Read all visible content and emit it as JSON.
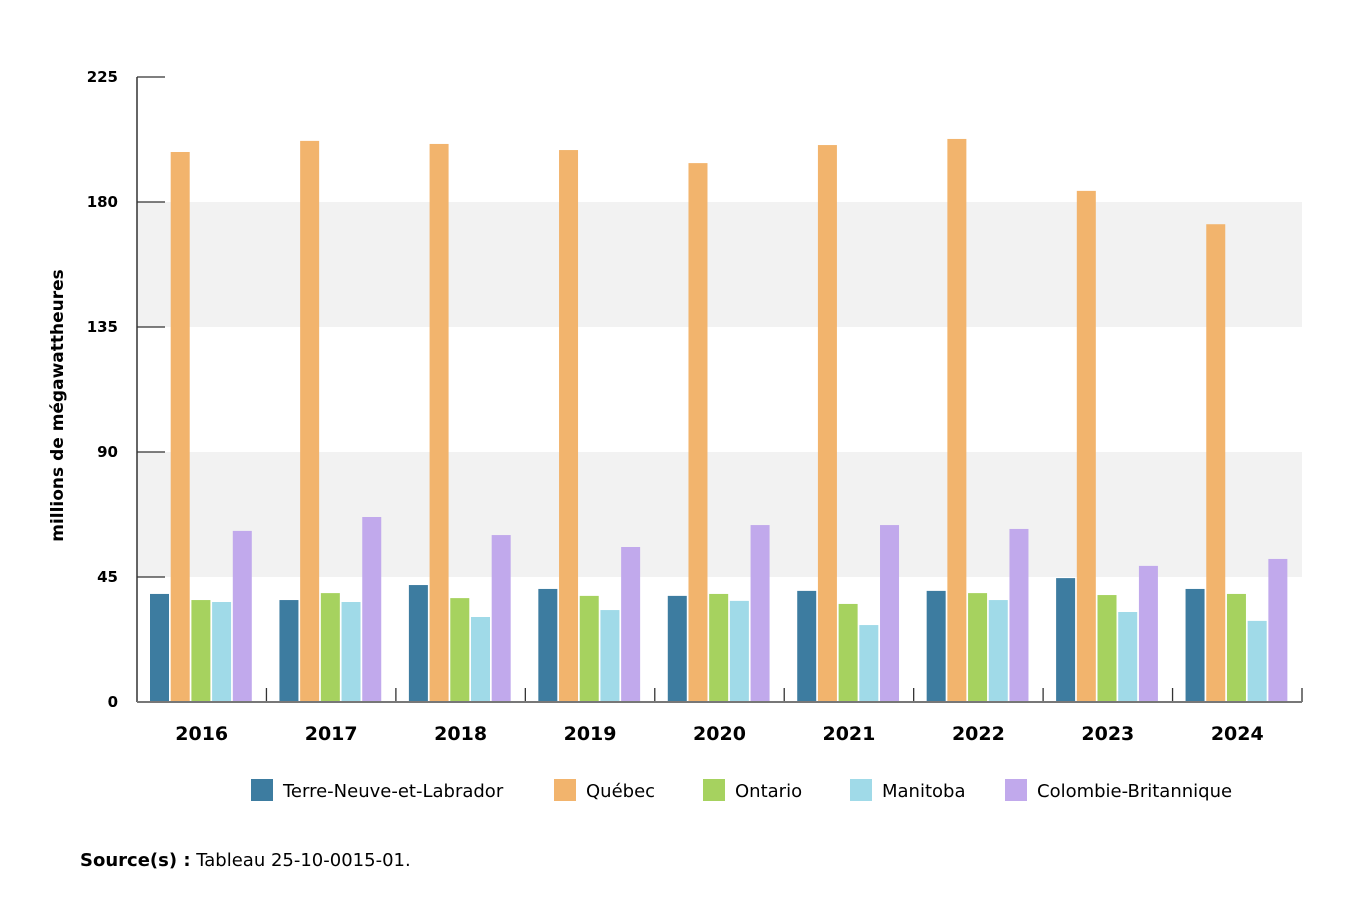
{
  "chart_data": {
    "type": "bar",
    "ylabel": "millions de mégawattheures",
    "xlabel": "",
    "ylim": [
      0,
      225
    ],
    "yticks": [
      0,
      45,
      90,
      135,
      180,
      225
    ],
    "categories": [
      "2016",
      "2017",
      "2018",
      "2019",
      "2020",
      "2021",
      "2022",
      "2023",
      "2024"
    ],
    "legend_position": "bottom",
    "series": [
      {
        "name": "Terre-Neuve-et-Labrador",
        "color": "#3d7ca0",
        "values": [
          38.9,
          36.7,
          42.1,
          40.7,
          38.2,
          40.0,
          40.0,
          44.6,
          40.7
        ]
      },
      {
        "name": "Québec",
        "color": "#f2b46d",
        "values": [
          198.0,
          202.0,
          200.9,
          198.7,
          194.0,
          200.5,
          202.7,
          184.0,
          172.0
        ]
      },
      {
        "name": "Ontario",
        "color": "#a6d25f",
        "values": [
          36.7,
          39.2,
          37.4,
          38.2,
          38.9,
          35.3,
          39.2,
          38.5,
          38.9
        ]
      },
      {
        "name": "Manitoba",
        "color": "#a0dae8",
        "values": [
          36.0,
          36.0,
          30.6,
          33.1,
          36.4,
          27.7,
          36.7,
          32.4,
          29.2
        ]
      },
      {
        "name": "Colombie-Britannique",
        "color": "#c1a9ec",
        "values": [
          61.6,
          66.6,
          60.1,
          55.8,
          63.7,
          63.7,
          62.3,
          49.0,
          51.5
        ]
      }
    ],
    "band_color": "#f2f2f2"
  },
  "source": {
    "label": "Source(s) :",
    "text": " Tableau 25-10-0015-01."
  }
}
